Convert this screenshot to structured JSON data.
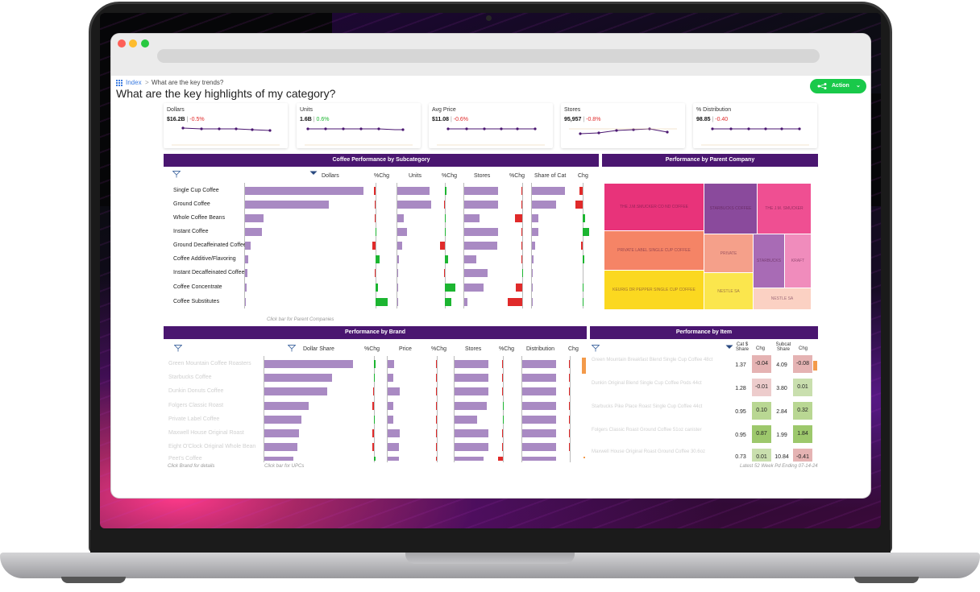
{
  "breadcrumb": {
    "root": "Index",
    "sep": ">",
    "current": "What are the key trends?"
  },
  "page_title": "What are the key highlights of my category?",
  "action_button": {
    "label": "Action"
  },
  "colors": {
    "accent_green": "#19c94a",
    "panel_purple": "#4a1670",
    "bar_purple": "#a98ac3",
    "pos": "#1cb531",
    "neg": "#e02a2a"
  },
  "kpis": [
    {
      "label": "Dollars",
      "value": "$16.2B",
      "sep": " | ",
      "change": "-0.5%",
      "change_dir": "neg"
    },
    {
      "label": "Units",
      "value": "1.6B",
      "sep": " | ",
      "change": "0.6%",
      "change_dir": "pos"
    },
    {
      "label": "Avg Price",
      "value": "$11.08",
      "sep": " | ",
      "change": "-0.6%",
      "change_dir": "neg"
    },
    {
      "label": "Stores",
      "value": "95,957",
      "sep": " | ",
      "change": "-0.8%",
      "change_dir": "neg"
    },
    {
      "label": "% Distribution",
      "value": "98.85",
      "sep": " | ",
      "change": "-0.40",
      "change_dir": "neg"
    }
  ],
  "subcategory_panel": {
    "title": "Coffee Performance by Subcategory",
    "columns": [
      "Dollars",
      "%Chg",
      "Units",
      "%Chg",
      "Stores",
      "%Chg",
      "Share of Cat",
      "Chg"
    ],
    "rows": [
      "Single Cup Coffee",
      "Ground Coffee",
      "Whole Coffee Beans",
      "Instant Coffee",
      "Ground Decaffeinated Coffee",
      "Coffee Additive/Flavoring",
      "Instant Decaffeinated Coffee",
      "Coffee Concentrate",
      "Coffee Substitutes"
    ],
    "hint": "Click bar for Parent Companies"
  },
  "parent_panel": {
    "title": "Performance by Parent Company",
    "tiles": [
      "THE J.M.SMUCKER CO   ND COFFEE",
      "STARBUCKS COFFEE",
      "THE J.M. SMUCKER",
      "PRIVATE LABEL SINGLE CUP COFFEE",
      "PRIVATE",
      "STARBUCKS",
      "KRAFT",
      "KEURIG DR PEPPER SINGLE CUP COFFEE",
      "NESTLE SA",
      "NESTLE SA"
    ]
  },
  "brand_panel": {
    "title": "Performance by Brand",
    "columns": [
      "Dollar Share",
      "%Chg",
      "Price",
      "%Chg",
      "Stores",
      "%Chg",
      "Distribution",
      "Chg"
    ],
    "rows": [
      "Green Mountain Coffee Roasters",
      "Starbucks Coffee",
      "Dunkin Donuts Coffee",
      "Folgers Classic Roast",
      "Private Label Coffee",
      "Maxwell House Original Roast",
      "Eight O'Clock Original Whole Bean",
      "Peet's Coffee"
    ],
    "hint_left": "Click Brand for details",
    "hint_right": "Click bar for UPCs"
  },
  "item_panel": {
    "title": "Performance by Item",
    "columns": [
      "Cat $ Share",
      "Chg",
      "Subcat Share",
      "Chg"
    ],
    "rows": [
      {
        "name": "Green Mountain Breakfast Blend Single Cup Coffee 48ct",
        "share": "1.37",
        "chg": "-0.04",
        "subshare": "4.09",
        "subchg": "-0.08"
      },
      {
        "name": "Dunkin Original Blend Single Cup Coffee Pods 44ct",
        "share": "1.28",
        "chg": "-0.01",
        "subshare": "3.80",
        "subchg": "0.01"
      },
      {
        "name": "Starbucks Pike Place Roast Single Cup Coffee 44ct",
        "share": "0.95",
        "chg": "0.10",
        "subshare": "2.84",
        "subchg": "0.32"
      },
      {
        "name": "Folgers Classic Roast Ground Coffee 51oz canister",
        "share": "0.95",
        "chg": "0.87",
        "subshare": "1.99",
        "subchg": "1.84"
      },
      {
        "name": "Maxwell House Original Roast Ground Coffee 30.6oz",
        "share": "0.73",
        "chg": "0.01",
        "subshare": "10.84",
        "subchg": "-0.41"
      }
    ],
    "footer": "Latest 52 Week Pd Ending 07-14-24"
  }
}
